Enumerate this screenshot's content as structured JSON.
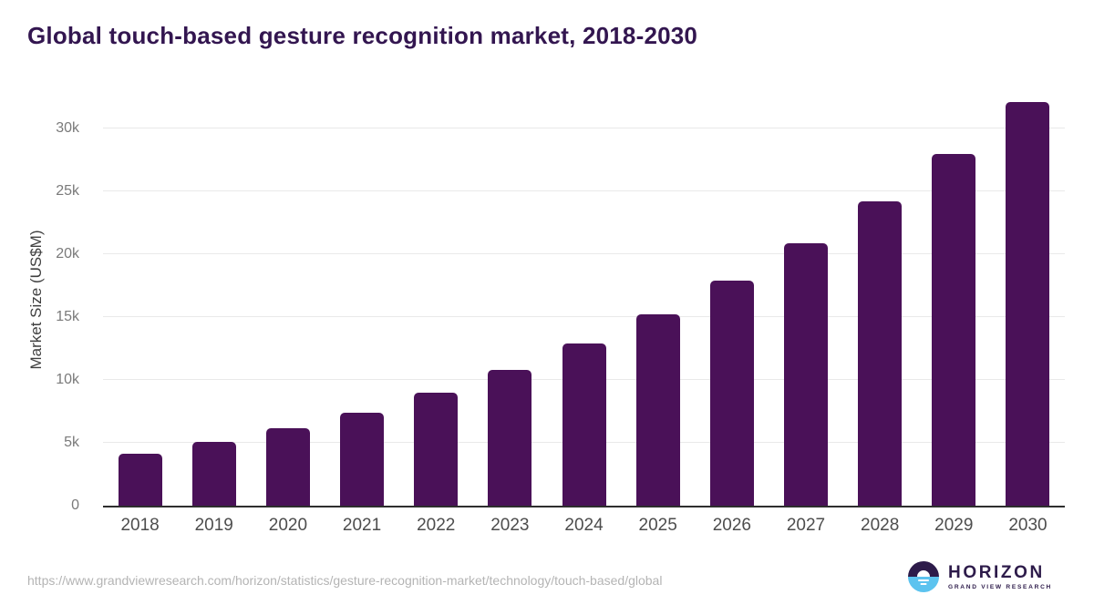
{
  "header": {
    "title": "Global touch-based gesture recognition market, 2018-2030"
  },
  "chart_data": {
    "type": "bar",
    "title": "Global touch-based gesture recognition market, 2018-2030",
    "categories": [
      "2018",
      "2019",
      "2020",
      "2021",
      "2022",
      "2023",
      "2024",
      "2025",
      "2026",
      "2027",
      "2028",
      "2029",
      "2030"
    ],
    "values": [
      4100,
      5100,
      6200,
      7400,
      9000,
      10800,
      12900,
      15200,
      17900,
      20900,
      24200,
      28000,
      32100
    ],
    "xlabel": "",
    "ylabel": "Market Size (US$M)",
    "ylim": [
      0,
      33000
    ],
    "yticks": [
      {
        "value": 0,
        "label": "0"
      },
      {
        "value": 5000,
        "label": "5k"
      },
      {
        "value": 10000,
        "label": "10k"
      },
      {
        "value": 15000,
        "label": "15k"
      },
      {
        "value": 20000,
        "label": "20k"
      },
      {
        "value": 25000,
        "label": "25k"
      },
      {
        "value": 30000,
        "label": "30k"
      }
    ],
    "grid": true,
    "legend": false,
    "bar_color": "#4a1158"
  },
  "footer": {
    "source_url": "https://www.grandviewresearch.com/horizon/statistics/gesture-recognition-market/technology/touch-based/global",
    "logo": {
      "name": "HORIZON",
      "subtitle": "GRAND VIEW RESEARCH"
    }
  },
  "colors": {
    "background": "#ffffff",
    "bar": "#4a1158",
    "title_text": "#331650",
    "axis_line": "#2e2e2e",
    "grid_line": "#e9e9e9",
    "y_tick_text": "#7a7a7a",
    "x_tick_text": "#4d4d4d",
    "axis_title_text": "#3f3f3f",
    "url_text": "#b4b4b4",
    "logo_purple": "#2d1b4a",
    "logo_blue": "#5cc3ef"
  }
}
